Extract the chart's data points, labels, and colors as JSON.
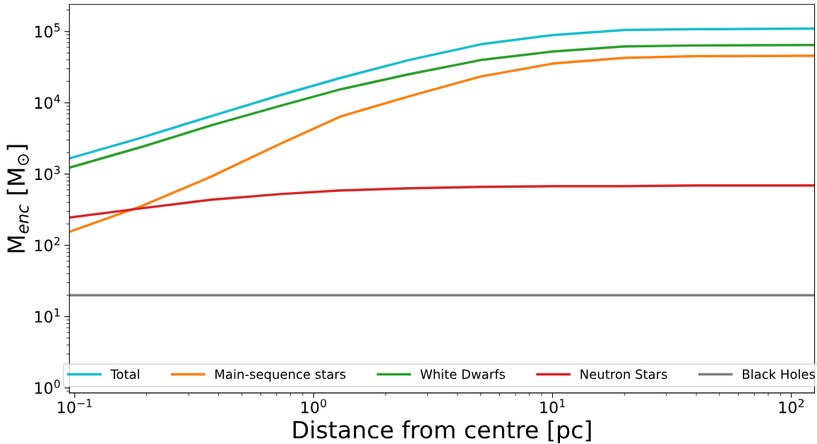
{
  "chart_data": {
    "type": "line",
    "xlabel": "Distance from centre [pc]",
    "ylabel": "M$_{enc}$ [M$_{⊙}$]",
    "log": "xy",
    "grid": false,
    "legend": "bottom",
    "line_style": "solid",
    "xlim": [
      0.095,
      125
    ],
    "ylim": [
      0.85,
      240000
    ],
    "xticks": [
      {
        "value": 0.1,
        "label": "10$^{−1}$"
      },
      {
        "value": 1,
        "label": "10$^{0}$"
      },
      {
        "value": 10,
        "label": "10$^{1}$"
      },
      {
        "value": 100,
        "label": "10$^{2}$"
      }
    ],
    "yticks": [
      {
        "value": 1,
        "label": "10$^{0}$"
      },
      {
        "value": 10,
        "label": "10$^{1}$"
      },
      {
        "value": 100,
        "label": "10$^{2}$"
      },
      {
        "value": 1000,
        "label": "10$^{3}$"
      },
      {
        "value": 10000,
        "label": "10$^{4}$"
      },
      {
        "value": 100000,
        "label": "10$^{5}$"
      }
    ],
    "x": [
      0.095,
      0.19,
      0.37,
      0.73,
      1.3,
      2.5,
      5,
      10,
      20,
      40,
      125
    ],
    "series": [
      {
        "name": "Total",
        "color": "#17becf",
        "values": [
          1660,
          3240,
          6460,
          12900,
          22400,
          39800,
          66100,
          89100,
          105000,
          108000,
          110000
        ]
      },
      {
        "name": "Main-sequence stars",
        "color": "#ff7f0e",
        "values": [
          155,
          355,
          912,
          2690,
          6460,
          12300,
          23400,
          35500,
          42700,
          45200,
          45700
        ]
      },
      {
        "name": "White Dwarfs",
        "color": "#2ca02c",
        "values": [
          1230,
          2400,
          4790,
          9120,
          15500,
          25100,
          39800,
          52500,
          61700,
          63800,
          64600
        ]
      },
      {
        "name": "Neutron Stars",
        "color": "#d62728",
        "values": [
          245,
          331,
          437,
          525,
          589,
          631,
          661,
          676,
          676,
          692,
          692
        ]
      },
      {
        "name": "Black Holes",
        "color": "#7f7f7f",
        "values": [
          20,
          20,
          20,
          20,
          20,
          20,
          20,
          20,
          20,
          20,
          20
        ]
      }
    ]
  }
}
